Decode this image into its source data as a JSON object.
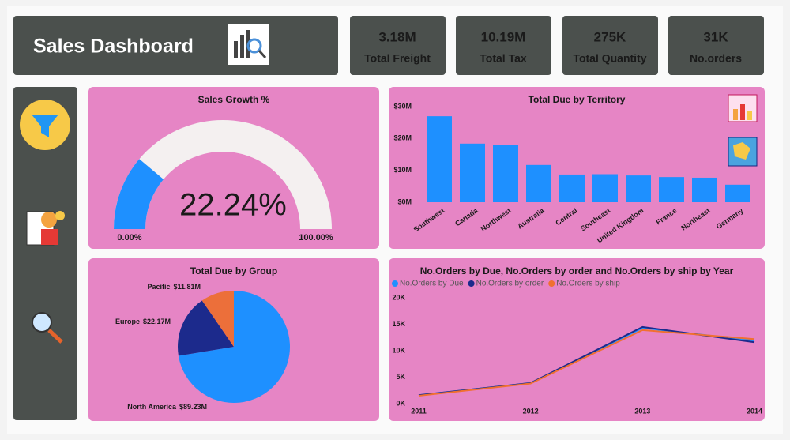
{
  "header": {
    "title": "Sales Dashboard"
  },
  "kpis": [
    {
      "value": "3.18M",
      "label": "Total Freight"
    },
    {
      "value": "10.19M",
      "label": "Total Tax"
    },
    {
      "value": "275K",
      "label": "Total Quantity"
    },
    {
      "value": "31K",
      "label": "No.orders"
    }
  ],
  "chart_data": [
    {
      "type": "gauge",
      "title": "Sales Growth %",
      "value": 22.24,
      "value_label": "22.24%",
      "ylim": [
        0,
        100
      ],
      "yticks": [
        {
          "value": 0,
          "label": "0.00%"
        },
        {
          "value": 100,
          "label": "100.00%"
        }
      ],
      "color": "#1e90ff",
      "track_color": "#f4f0f0"
    },
    {
      "type": "bar",
      "title": "Total Due by Territory",
      "categories": [
        "Southwest",
        "Canada",
        "Northwest",
        "Australia",
        "Central",
        "Southeast",
        "United Kingdom",
        "France",
        "Northeast",
        "Germany"
      ],
      "values": [
        27000000,
        18400000,
        17900000,
        11700000,
        8700000,
        8800000,
        8400000,
        7900000,
        7700000,
        5500000
      ],
      "color": "#1e90ff",
      "ylim": [
        0,
        31000000
      ],
      "yticks": [
        {
          "value": 0,
          "label": "$0M"
        },
        {
          "value": 10000000,
          "label": "$10M"
        },
        {
          "value": 20000000,
          "label": "$20M"
        },
        {
          "value": 30000000,
          "label": "$30M"
        }
      ]
    },
    {
      "type": "pie",
      "title": "Total Due by Group",
      "categories": [
        "North America",
        "Europe",
        "Pacific"
      ],
      "values": [
        89230000,
        22170000,
        11810000
      ],
      "value_labels": [
        "$89.23M",
        "$22.17M",
        "$11.81M"
      ],
      "colors": [
        "#1e90ff",
        "#1c2a8c",
        "#ec6f3a"
      ]
    },
    {
      "type": "line",
      "title": "No.Orders by Due, No.Orders by order and No.Orders by ship by Year",
      "x": [
        2011,
        2012,
        2013,
        2014
      ],
      "xlim": [
        2011,
        2014
      ],
      "xticks": [
        2011,
        2012,
        2013,
        2014
      ],
      "ylim": [
        0,
        20000
      ],
      "yticks": [
        {
          "value": 0,
          "label": "0K"
        },
        {
          "value": 5000,
          "label": "5K"
        },
        {
          "value": 10000,
          "label": "10K"
        },
        {
          "value": 15000,
          "label": "15K"
        },
        {
          "value": 20000,
          "label": "20K"
        }
      ],
      "series": [
        {
          "name": "No.Orders by Due",
          "color": "#1e90ff",
          "values": [
            1600,
            3900,
            14300,
            11900
          ]
        },
        {
          "name": "No.Orders by order",
          "color": "#1c2a8c",
          "values": [
            1600,
            3900,
            14500,
            11600
          ]
        },
        {
          "name": "No.Orders by ship",
          "color": "#f07030",
          "values": [
            1500,
            3800,
            13900,
            12200
          ]
        }
      ]
    }
  ]
}
